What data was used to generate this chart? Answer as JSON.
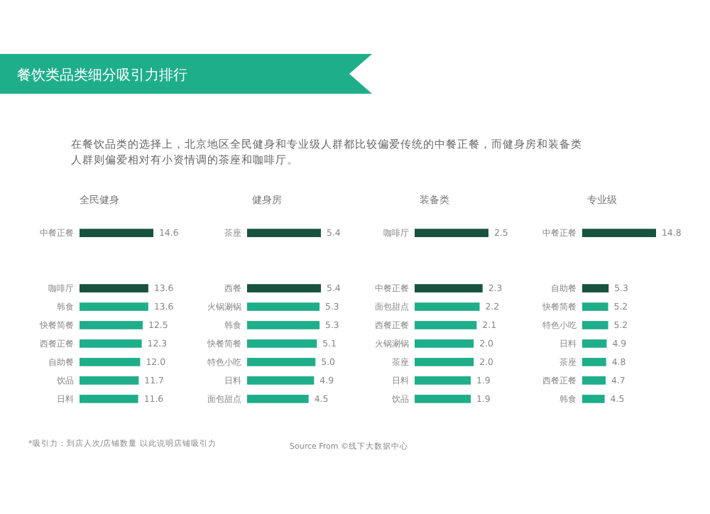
{
  "chart_data": [
    {
      "type": "other",
      "title": "餐饮类品类细分吸引力排行",
      "subtitle": "在餐饮品类的选择上，北京地区全民健身和专业级人群都比较偏爱传统的中餐正餐，而健身房和装备类人群则偏爱相对有小资情调的茶座和咖啡厅。",
      "annotations": [
        "*吸引力：到店人次/店铺数量 以此说明店铺吸引力",
        "Source From ©线下大数据中心"
      ]
    },
    {
      "type": "bar",
      "orientation": "horizontal",
      "title": "全民健身",
      "categories": [
        "中餐正餐",
        null,
        null,
        "咖啡厅",
        "韩食",
        "快餐简餐",
        "西餐正餐",
        "自助餐",
        "饮品",
        "日料"
      ],
      "values": [
        14.6,
        null,
        null,
        13.6,
        13.6,
        12.5,
        12.3,
        12.0,
        11.7,
        11.6
      ],
      "value_labels": [
        "14.6",
        null,
        null,
        "13.6",
        "13.6",
        "12.5",
        "12.3",
        "12.0",
        "11.7",
        "11.6"
      ],
      "colors": [
        "#17533f",
        null,
        null,
        "#17533f",
        "#1fae8a",
        "#1fae8a",
        "#1fae8a",
        "#1fae8a",
        "#1fae8a",
        "#1fae8a"
      ]
    },
    {
      "type": "bar",
      "orientation": "horizontal",
      "title": "健身房",
      "categories": [
        "茶座",
        null,
        null,
        "西餐",
        "火锅涮锅",
        "韩食",
        "快餐简餐",
        "特色小吃",
        "日料",
        "面包甜点"
      ],
      "values": [
        5.4,
        null,
        null,
        5.4,
        5.3,
        5.3,
        5.1,
        5.0,
        4.9,
        4.5
      ],
      "value_labels": [
        "5.4",
        null,
        null,
        "5.4",
        "5.3",
        "5.3",
        "5.1",
        "5.0",
        "4.9",
        "4.5"
      ],
      "colors": [
        "#17533f",
        null,
        null,
        "#17533f",
        "#1fae8a",
        "#1fae8a",
        "#1fae8a",
        "#1fae8a",
        "#1fae8a",
        "#1fae8a"
      ]
    },
    {
      "type": "bar",
      "orientation": "horizontal",
      "title": "装备类",
      "categories": [
        "咖啡厅",
        null,
        null,
        "中餐正餐",
        "面包甜点",
        "西餐正餐",
        "火锅涮锅",
        "茶座",
        "日料",
        "饮品"
      ],
      "values": [
        2.5,
        null,
        null,
        2.3,
        2.2,
        2.1,
        2.0,
        2.0,
        1.9,
        1.9
      ],
      "value_labels": [
        "2.5",
        null,
        null,
        "2.3",
        "2.2",
        "2.1",
        "2.0",
        "2.0",
        "1.9",
        "1.9"
      ],
      "colors": [
        "#17533f",
        null,
        null,
        "#17533f",
        "#1fae8a",
        "#1fae8a",
        "#1fae8a",
        "#1fae8a",
        "#1fae8a",
        "#1fae8a"
      ]
    },
    {
      "type": "bar",
      "orientation": "horizontal",
      "title": "专业级",
      "categories": [
        "中餐正餐",
        null,
        null,
        "自助餐",
        "快餐简餐",
        "特色小吃",
        "日料",
        "茶座",
        "西餐正餐",
        "韩食"
      ],
      "values": [
        14.8,
        null,
        null,
        5.3,
        5.2,
        5.2,
        4.9,
        4.8,
        4.7,
        4.5
      ],
      "value_labels": [
        "14.8",
        null,
        null,
        "5.3",
        "5.2",
        "5.2",
        "4.9",
        "4.8",
        "4.7",
        "4.5"
      ],
      "colors": [
        "#17533f",
        null,
        null,
        "#17533f",
        "#1fae8a",
        "#1fae8a",
        "#1fae8a",
        "#1fae8a",
        "#1fae8a",
        "#1fae8a"
      ]
    }
  ]
}
